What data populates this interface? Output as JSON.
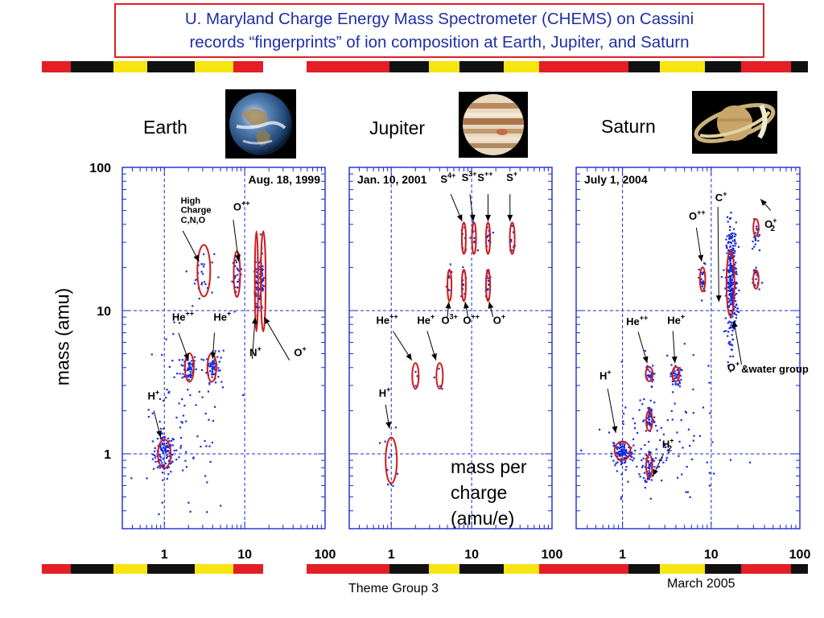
{
  "title": {
    "line1": "U. Maryland Charge Energy Mass Spectrometer (CHEMS) on Cassini",
    "line2": "records “fingerprints” of ion composition at Earth, Jupiter, and Saturn"
  },
  "colors": {
    "title_text": "#1f2fa5",
    "title_border": "#e31e24",
    "points": "#1a2bd6",
    "ellipses": "#d01c1c",
    "banner_red": "#e31e24",
    "banner_black": "#111111",
    "banner_yellow": "#f6e511"
  },
  "ylabel": "mass (amu)",
  "xlabel_lines": [
    "mass per",
    "charge",
    "(amu/e)"
  ],
  "footer": {
    "left": "Theme Group 3",
    "right": "March 2005"
  },
  "planets": [
    {
      "name": "Earth",
      "image_icon": "earth-photo"
    },
    {
      "name": "Jupiter",
      "image_icon": "jupiter-photo"
    },
    {
      "name": "Saturn",
      "image_icon": "saturn-photo"
    }
  ],
  "chart_data": [
    {
      "type": "scatter",
      "planet": "Earth",
      "date": "Aug. 18, 1999",
      "x_scale": "log",
      "y_scale": "log",
      "xlim": [
        0.3,
        100
      ],
      "ylim": [
        0.3,
        100
      ],
      "x_ticks": [
        "1",
        "10",
        "100"
      ],
      "y_ticks": [
        "1",
        "10",
        "100"
      ],
      "grid": "dashed at decades",
      "clusters": [
        {
          "label": "H+",
          "x": 1,
          "y": 1,
          "n": 110,
          "sx": 0.07,
          "sy": 0.07
        },
        {
          "label": "He++",
          "x": 2,
          "y": 4,
          "n": 55,
          "sx": 0.05,
          "sy": 0.05
        },
        {
          "label": "He+",
          "x": 4,
          "y": 4,
          "n": 55,
          "sx": 0.04,
          "sy": 0.05
        },
        {
          "label": "High Charge C,N,O",
          "x": 3,
          "y": 18,
          "n": 25,
          "sx": 0.07,
          "sy": 0.08
        },
        {
          "label": "O++",
          "x": 8,
          "y": 17,
          "n": 25,
          "sx": 0.03,
          "sy": 0.07
        },
        {
          "label": "N+",
          "x": 14,
          "y": 14,
          "n": 35,
          "sx": 0.015,
          "sy": 0.1
        },
        {
          "label": "O+",
          "x": 16,
          "y": 16,
          "n": 70,
          "sx": 0.02,
          "sy": 0.1
        },
        {
          "label": "background",
          "x": 1.8,
          "y": 1.5,
          "n": 90,
          "sx": 0.3,
          "sy": 0.35
        }
      ],
      "annotations": [
        {
          "text": "High",
          "x": 1.6,
          "y": 56
        },
        {
          "text": "Charge",
          "x": 1.6,
          "y": 48
        },
        {
          "text": "C,N,O",
          "x": 1.6,
          "y": 41
        },
        {
          "text": "O",
          "sup": "++",
          "x": 7.2,
          "y": 50
        },
        {
          "text": "He",
          "sup": "++",
          "x": 1.25,
          "y": 8.5
        },
        {
          "text": "He",
          "sup": "+",
          "x": 4.1,
          "y": 8.5
        },
        {
          "text": "H",
          "sup": "+",
          "x": 0.62,
          "y": 2.4
        },
        {
          "text": "N",
          "sup": "+",
          "x": 11.5,
          "y": 4.8
        },
        {
          "text": "O",
          "sup": "+",
          "x": 41,
          "y": 4.8
        }
      ],
      "ellipses": [
        {
          "x": 1.0,
          "y": 1.0,
          "rx": 0.08,
          "ry": 0.1
        },
        {
          "x": 2.05,
          "y": 4.0,
          "rx": 0.055,
          "ry": 0.1
        },
        {
          "x": 3.9,
          "y": 4.0,
          "rx": 0.055,
          "ry": 0.1
        },
        {
          "x": 3.1,
          "y": 19,
          "rx": 0.08,
          "ry": 0.18
        },
        {
          "x": 8.0,
          "y": 18,
          "rx": 0.04,
          "ry": 0.16
        },
        {
          "x": 14.0,
          "y": 16,
          "rx": 0.02,
          "ry": 0.35
        },
        {
          "x": 17.0,
          "y": 16,
          "rx": 0.03,
          "ry": 0.35
        }
      ],
      "arrows": [
        {
          "from": [
            1.7,
            36
          ],
          "to": [
            2.7,
            22
          ]
        },
        {
          "from": [
            7.2,
            43
          ],
          "to": [
            8.4,
            22
          ]
        },
        {
          "from": [
            1.5,
            7.0
          ],
          "to": [
            2.0,
            4.5
          ]
        },
        {
          "from": [
            4.2,
            7.0
          ],
          "to": [
            4.0,
            4.6
          ]
        },
        {
          "from": [
            0.74,
            2.0
          ],
          "to": [
            0.9,
            1.3
          ]
        },
        {
          "from": [
            12.4,
            4.6
          ],
          "to": [
            13.5,
            9.0
          ]
        },
        {
          "from": [
            36,
            4.5
          ],
          "to": [
            17.5,
            9.0
          ]
        }
      ]
    },
    {
      "type": "scatter",
      "planet": "Jupiter",
      "date": "Jan. 10, 2001",
      "x_scale": "log",
      "y_scale": "log",
      "xlim": [
        0.3,
        100
      ],
      "ylim": [
        0.3,
        100
      ],
      "x_ticks": [
        "1",
        "10",
        "100"
      ],
      "grid": "dashed at decades",
      "clusters": [
        {
          "label": "H+",
          "x": 1,
          "y": 0.9,
          "n": 10,
          "sx": 0.05,
          "sy": 0.12
        },
        {
          "label": "He++",
          "x": 2,
          "y": 3.5,
          "n": 5,
          "sx": 0.03,
          "sy": 0.06
        },
        {
          "label": "He+",
          "x": 4,
          "y": 3.5,
          "n": 4,
          "sx": 0.03,
          "sy": 0.05
        },
        {
          "label": "O3+",
          "x": 5.3,
          "y": 16,
          "n": 8,
          "sx": 0.02,
          "sy": 0.05
        },
        {
          "label": "O++",
          "x": 8,
          "y": 16,
          "n": 9,
          "sx": 0.02,
          "sy": 0.05
        },
        {
          "label": "O+",
          "x": 16,
          "y": 16,
          "n": 18,
          "sx": 0.02,
          "sy": 0.05
        },
        {
          "label": "S4+",
          "x": 8,
          "y": 32,
          "n": 8,
          "sx": 0.02,
          "sy": 0.05
        },
        {
          "label": "S3+",
          "x": 10.7,
          "y": 32,
          "n": 10,
          "sx": 0.02,
          "sy": 0.05
        },
        {
          "label": "S++",
          "x": 16,
          "y": 32,
          "n": 14,
          "sx": 0.02,
          "sy": 0.05
        },
        {
          "label": "S+",
          "x": 32,
          "y": 32,
          "n": 8,
          "sx": 0.02,
          "sy": 0.05
        }
      ],
      "annotations": [
        {
          "text": "S",
          "sup": "4+",
          "x": 4.1,
          "y": 78
        },
        {
          "text": "S",
          "sup": "3+",
          "x": 7.5,
          "y": 80
        },
        {
          "text": "S",
          "sup": "++",
          "x": 11.8,
          "y": 80
        },
        {
          "text": "S",
          "sup": "+",
          "x": 27,
          "y": 80
        },
        {
          "text": "He",
          "sup": "++",
          "x": 0.65,
          "y": 8.1
        },
        {
          "text": "He",
          "sup": "+",
          "x": 2.1,
          "y": 8.1
        },
        {
          "text": "O",
          "sup": "3+",
          "x": 4.2,
          "y": 8.1
        },
        {
          "text": "O",
          "sup": "++",
          "x": 7.8,
          "y": 8.1
        },
        {
          "text": "O",
          "sup": "+",
          "x": 18.5,
          "y": 8.1
        },
        {
          "text": "H",
          "sup": "+",
          "x": 0.7,
          "y": 2.5
        }
      ],
      "ellipses": [
        {
          "x": 1.0,
          "y": 0.9,
          "rx": 0.07,
          "ry": 0.16
        },
        {
          "x": 2.0,
          "y": 3.5,
          "rx": 0.04,
          "ry": 0.09
        },
        {
          "x": 4.0,
          "y": 3.5,
          "rx": 0.04,
          "ry": 0.09
        },
        {
          "x": 5.3,
          "y": 15,
          "rx": 0.025,
          "ry": 0.11
        },
        {
          "x": 8.0,
          "y": 15,
          "rx": 0.025,
          "ry": 0.11
        },
        {
          "x": 16.0,
          "y": 15,
          "rx": 0.025,
          "ry": 0.11
        },
        {
          "x": 8.0,
          "y": 32,
          "rx": 0.025,
          "ry": 0.11
        },
        {
          "x": 10.7,
          "y": 32,
          "rx": 0.025,
          "ry": 0.11
        },
        {
          "x": 16.0,
          "y": 32,
          "rx": 0.025,
          "ry": 0.11
        },
        {
          "x": 32.0,
          "y": 32,
          "rx": 0.03,
          "ry": 0.11
        }
      ],
      "arrows": [
        {
          "from": [
            5.5,
            65
          ],
          "to": [
            7.6,
            42
          ]
        },
        {
          "from": [
            9.5,
            65
          ],
          "to": [
            10.5,
            42
          ]
        },
        {
          "from": [
            16,
            65
          ],
          "to": [
            16,
            42
          ]
        },
        {
          "from": [
            30,
            65
          ],
          "to": [
            30,
            42
          ]
        },
        {
          "from": [
            1.05,
            7.2
          ],
          "to": [
            1.8,
            4.5
          ]
        },
        {
          "from": [
            2.8,
            7.2
          ],
          "to": [
            3.6,
            4.5
          ]
        },
        {
          "from": [
            5.0,
            9.0
          ],
          "to": [
            5.2,
            11.5
          ]
        },
        {
          "from": [
            9.0,
            9.0
          ],
          "to": [
            8.3,
            11.5
          ]
        },
        {
          "from": [
            18.5,
            9.0
          ],
          "to": [
            16.5,
            11.5
          ]
        },
        {
          "from": [
            0.85,
            2.2
          ],
          "to": [
            0.95,
            1.5
          ]
        }
      ]
    },
    {
      "type": "scatter",
      "planet": "Saturn",
      "date": "July 1, 2004",
      "x_scale": "log",
      "y_scale": "log",
      "xlim": [
        0.3,
        100
      ],
      "ylim": [
        0.3,
        100
      ],
      "x_ticks": [
        "1",
        "10",
        "100"
      ],
      "grid": "dashed at decades",
      "clusters": [
        {
          "label": "H+",
          "x": 1,
          "y": 1,
          "n": 110,
          "sx": 0.06,
          "sy": 0.05
        },
        {
          "label": "H2+",
          "x": 2,
          "y": 0.8,
          "n": 50,
          "sx": 0.025,
          "sy": 0.06
        },
        {
          "label": "He++",
          "x": 2,
          "y": 1.8,
          "n": 40,
          "sx": 0.025,
          "sy": 0.05
        },
        {
          "label": "He++ (4 amu)",
          "x": 2,
          "y": 3.5,
          "n": 25,
          "sx": 0.025,
          "sy": 0.04
        },
        {
          "label": "He+",
          "x": 4,
          "y": 3.5,
          "n": 45,
          "sx": 0.03,
          "sy": 0.04
        },
        {
          "label": "O++",
          "x": 8,
          "y": 16,
          "n": 30,
          "sx": 0.02,
          "sy": 0.06
        },
        {
          "label": "O+ & water group",
          "x": 17,
          "y": 16,
          "n": 320,
          "sx": 0.03,
          "sy": 0.2
        },
        {
          "label": "O2+",
          "x": 32,
          "y": 32,
          "n": 20,
          "sx": 0.02,
          "sy": 0.06
        },
        {
          "label": "O2+ doubly",
          "x": 32,
          "y": 17,
          "n": 18,
          "sx": 0.025,
          "sy": 0.05
        },
        {
          "label": "background",
          "x": 2.5,
          "y": 1.1,
          "n": 120,
          "sx": 0.35,
          "sy": 0.25
        }
      ],
      "annotations": [
        {
          "text": "C",
          "sup": "+",
          "x": 11.1,
          "y": 58
        },
        {
          "text": "O",
          "sup": "++",
          "x": 5.6,
          "y": 43
        },
        {
          "text": "O",
          "sup": "+",
          "x": 40,
          "y": 38,
          "sub": "2"
        },
        {
          "text": "He",
          "sup": "++",
          "x": 1.1,
          "y": 7.9
        },
        {
          "text": "He",
          "sup": "+",
          "x": 3.2,
          "y": 8.1
        },
        {
          "text": "O",
          "sup": "+",
          "x": 15.2,
          "y": 3.8
        },
        {
          "text": "&",
          "x": 21.8,
          "y": 3.7,
          "small": true
        },
        {
          "text": "water group",
          "x": 26.5,
          "y": 3.7,
          "small": true
        },
        {
          "text": "H",
          "sup": "+",
          "x": 0.55,
          "y": 3.3
        },
        {
          "text": "H",
          "sup": "+",
          "x": 2.8,
          "y": 1.1,
          "sub": "2"
        }
      ],
      "ellipses": [
        {
          "x": 1.0,
          "y": 1.05,
          "rx": 0.09,
          "ry": 0.065
        },
        {
          "x": 2.0,
          "y": 1.7,
          "rx": 0.035,
          "ry": 0.07
        },
        {
          "x": 2.0,
          "y": 0.82,
          "rx": 0.035,
          "ry": 0.08
        },
        {
          "x": 2.0,
          "y": 3.6,
          "rx": 0.04,
          "ry": 0.05
        },
        {
          "x": 4.0,
          "y": 3.6,
          "rx": 0.04,
          "ry": 0.05
        },
        {
          "x": 8.0,
          "y": 16.5,
          "rx": 0.03,
          "ry": 0.085
        },
        {
          "x": 16.5,
          "y": 15.5,
          "rx": 0.045,
          "ry": 0.23
        },
        {
          "x": 32.0,
          "y": 16.5,
          "rx": 0.03,
          "ry": 0.065
        },
        {
          "x": 32.0,
          "y": 38,
          "rx": 0.03,
          "ry": 0.06
        }
      ],
      "arrows": [
        {
          "from": [
            11.9,
            53
          ],
          "to": [
            12.2,
            11.5
          ]
        },
        {
          "from": [
            6.8,
            38
          ],
          "to": [
            7.8,
            22
          ]
        },
        {
          "from": [
            47,
            50
          ],
          "to": [
            36,
            60
          ]
        },
        {
          "from": [
            1.5,
            7.1
          ],
          "to": [
            1.9,
            4.3
          ]
        },
        {
          "from": [
            3.7,
            7.2
          ],
          "to": [
            3.9,
            4.3
          ]
        },
        {
          "from": [
            22,
            4.2
          ],
          "to": [
            18,
            8.5
          ]
        },
        {
          "from": [
            0.68,
            2.85
          ],
          "to": [
            0.84,
            1.4
          ]
        },
        {
          "from": [
            2.9,
            1.0
          ],
          "to": [
            2.2,
            0.7
          ]
        }
      ]
    }
  ]
}
